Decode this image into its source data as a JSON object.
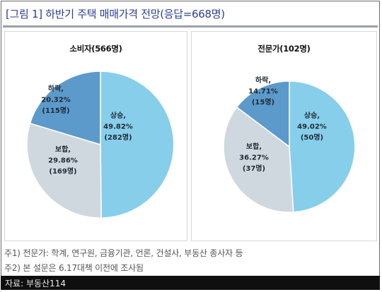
{
  "title": "[그림 1] 하반기 주택 매매가격 전망(응답=668명)",
  "colors": {
    "up": "#87CEEB",
    "neutral": "#D0D8DF",
    "down": "#5B9ACB"
  },
  "chart_data": [
    {
      "type": "pie",
      "title": "소비자(566명)",
      "slices": [
        {
          "label": "상승,",
          "value": 49.82,
          "value_text": "49.82%",
          "count": "(282명)",
          "color": "#87CEEB"
        },
        {
          "label": "보합,",
          "value": 29.86,
          "value_text": "29.86%",
          "count": "(169명)",
          "color": "#D0D8DF"
        },
        {
          "label": "하락,",
          "value": 20.32,
          "value_text": "20.32%",
          "count": "(115명)",
          "color": "#5B9ACB"
        }
      ]
    },
    {
      "type": "pie",
      "title": "전문가(102명)",
      "slices": [
        {
          "label": "상승,",
          "value": 49.02,
          "value_text": "49.02%",
          "count": "(50명)",
          "color": "#87CEEB"
        },
        {
          "label": "보합,",
          "value": 36.27,
          "value_text": "36.27%",
          "count": "(37명)",
          "color": "#D0D8DF"
        },
        {
          "label": "하락,",
          "value": 14.71,
          "value_text": "14.71%",
          "count": "(15명)",
          "color": "#5B9ACB"
        }
      ]
    }
  ],
  "notes": [
    "주1) 전문가: 학계, 연구원, 금융기관, 언론, 건설사, 부동산 종사자 등",
    "주2) 본 설문은 6.17대책 이전에 조사됨"
  ],
  "source": "자료: 부동산114"
}
